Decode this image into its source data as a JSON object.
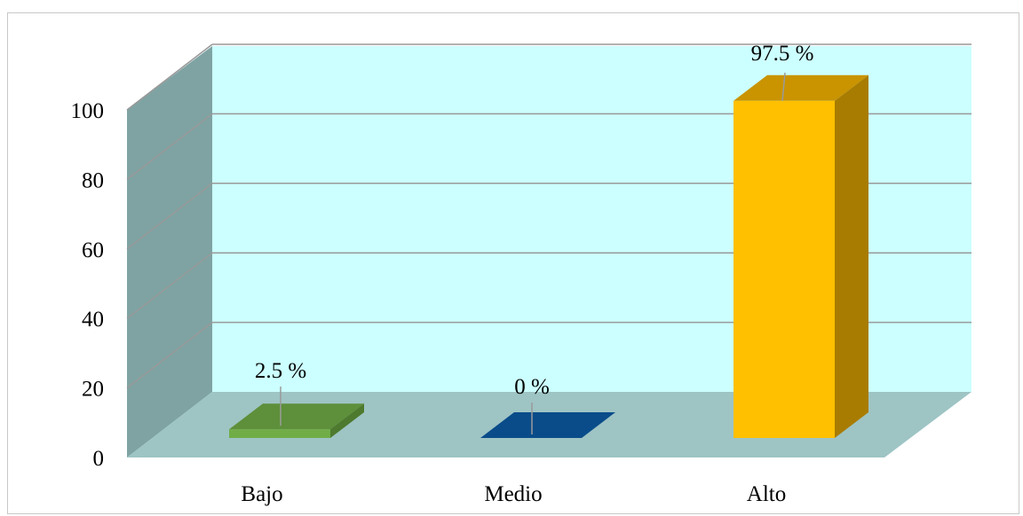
{
  "chart_data": {
    "type": "bar",
    "categories": [
      "Bajo",
      "Medio",
      "Alto"
    ],
    "values": [
      2.5,
      0,
      97.5
    ],
    "data_labels": [
      "2.5 %",
      "0 %",
      "97.5 %"
    ],
    "yticks": [
      "0",
      "20",
      "40",
      "60",
      "80",
      "100"
    ],
    "ylim": [
      0,
      100
    ],
    "grid": true,
    "legend": "none",
    "title": "",
    "xlabel": "",
    "ylabel": "",
    "style": "3d-column",
    "colors": {
      "bars": [
        "#70ad47",
        "#0b5394",
        "#ffc000"
      ],
      "bar_tops": [
        "#5e8f3a",
        "#0a4c8a",
        "#c99400"
      ],
      "bar_sides": [
        "#4d7a2e",
        "#073f73",
        "#a87c00"
      ],
      "back_wall": "#ccffff",
      "side_wall": "#7fa3a3",
      "floor": "#9ec4c4",
      "gridline": "#999999"
    }
  }
}
